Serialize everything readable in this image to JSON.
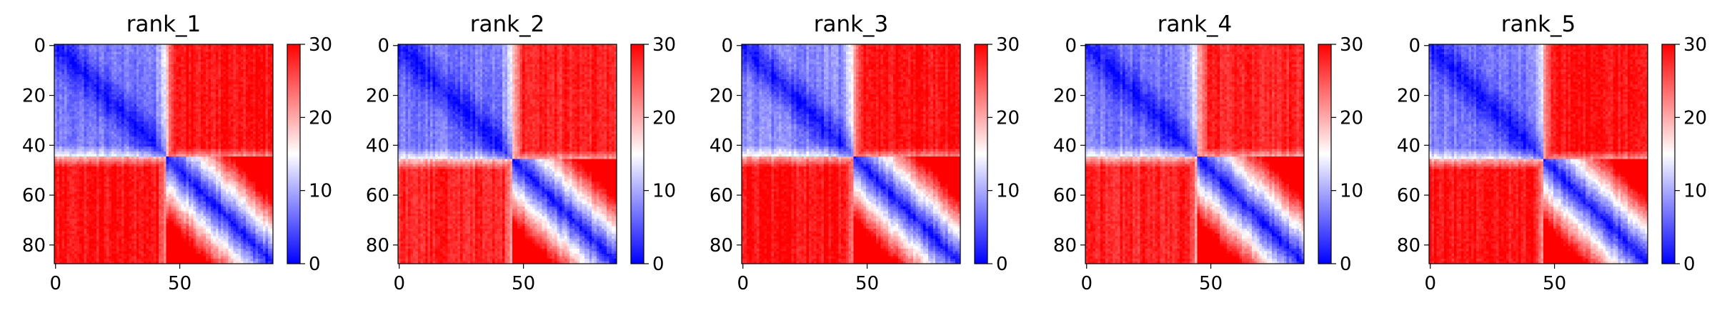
{
  "chart_data": [
    {
      "type": "heatmap",
      "title": "rank_1",
      "n": 88,
      "xticks": [
        0,
        50
      ],
      "yticks": [
        0,
        20,
        40,
        60,
        80
      ],
      "colorbar": {
        "ticks": [
          0,
          10,
          20,
          30
        ],
        "range": [
          0,
          30
        ],
        "colormap": "bwr"
      },
      "structure": {
        "domain_boundary": 45,
        "diagonal_value": 1,
        "within_domain_value": 6,
        "between_domain_value": 29
      }
    },
    {
      "type": "heatmap",
      "title": "rank_2",
      "n": 88,
      "xticks": [
        0,
        50
      ],
      "yticks": [
        0,
        20,
        40,
        60,
        80
      ],
      "colorbar": {
        "ticks": [
          0,
          10,
          20,
          30
        ],
        "range": [
          0,
          30
        ],
        "colormap": "bwr"
      },
      "structure": {
        "domain_boundary": 46,
        "diagonal_value": 1,
        "within_domain_value": 6,
        "between_domain_value": 28
      }
    },
    {
      "type": "heatmap",
      "title": "rank_3",
      "n": 88,
      "xticks": [
        0,
        50
      ],
      "yticks": [
        0,
        20,
        40,
        60,
        80
      ],
      "colorbar": {
        "ticks": [
          0,
          10,
          20,
          30
        ],
        "range": [
          0,
          30
        ],
        "colormap": "bwr"
      },
      "structure": {
        "domain_boundary": 45,
        "diagonal_value": 1,
        "within_domain_value": 7,
        "between_domain_value": 29
      }
    },
    {
      "type": "heatmap",
      "title": "rank_4",
      "n": 88,
      "xticks": [
        0,
        50
      ],
      "yticks": [
        0,
        20,
        40,
        60,
        80
      ],
      "colorbar": {
        "ticks": [
          0,
          10,
          20,
          30
        ],
        "range": [
          0,
          30
        ],
        "colormap": "bwr"
      },
      "structure": {
        "domain_boundary": 45,
        "diagonal_value": 1,
        "within_domain_value": 6,
        "between_domain_value": 28
      }
    },
    {
      "type": "heatmap",
      "title": "rank_5",
      "n": 88,
      "xticks": [
        0,
        50
      ],
      "yticks": [
        0,
        20,
        40,
        60,
        80
      ],
      "colorbar": {
        "ticks": [
          0,
          10,
          20,
          30
        ],
        "range": [
          0,
          30
        ],
        "colormap": "bwr"
      },
      "structure": {
        "domain_boundary": 46,
        "diagonal_value": 1,
        "within_domain_value": 6,
        "between_domain_value": 29
      }
    }
  ]
}
